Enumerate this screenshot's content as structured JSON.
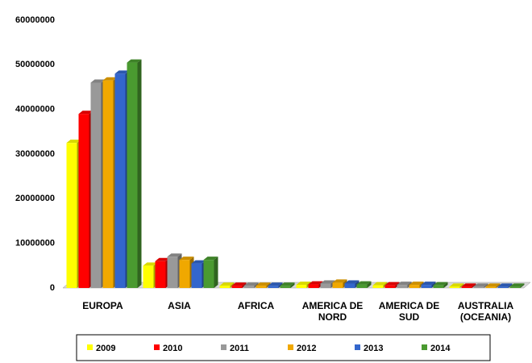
{
  "chart_data": {
    "type": "bar3d",
    "categories": [
      "EUROPA",
      "ASIA",
      "AFRICA",
      "AMERICA DE NORD",
      "AMERICA DE SUD",
      "AUSTRALIA (OCEANIA)"
    ],
    "series": [
      {
        "name": "2009",
        "color": "#ffff00",
        "values": [
          32500000,
          5000000,
          500000,
          700000,
          600000,
          300000
        ]
      },
      {
        "name": "2010",
        "color": "#ff0000",
        "values": [
          39000000,
          6000000,
          500000,
          800000,
          600000,
          300000
        ]
      },
      {
        "name": "2011",
        "color": "#999999",
        "values": [
          46000000,
          7000000,
          500000,
          1000000,
          700000,
          300000
        ]
      },
      {
        "name": "2012",
        "color": "#f0a800",
        "values": [
          46500000,
          6300000,
          500000,
          1200000,
          700000,
          300000
        ]
      },
      {
        "name": "2013",
        "color": "#3366cc",
        "values": [
          48000000,
          5500000,
          500000,
          1000000,
          700000,
          300000
        ]
      },
      {
        "name": "2014",
        "color": "#4a9a30",
        "values": [
          50500000,
          6300000,
          500000,
          800000,
          600000,
          300000
        ]
      }
    ],
    "ylim": [
      0,
      60000000
    ],
    "yticks": [
      0,
      10000000,
      20000000,
      30000000,
      40000000,
      50000000,
      60000000
    ],
    "legend": "bottom"
  }
}
